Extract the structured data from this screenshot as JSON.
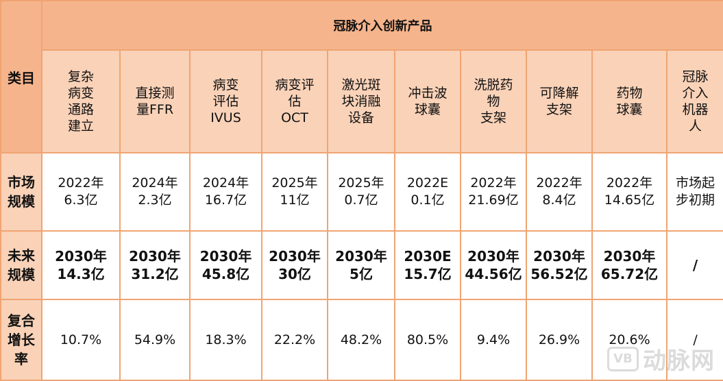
{
  "table": {
    "category_label": "类目",
    "group_title": "冠脉介入创新产品",
    "columns": [
      [
        "复杂",
        "病变",
        "通路",
        "建立"
      ],
      [
        "直接测",
        "量FFR"
      ],
      [
        "病变",
        "评估",
        "IVUS"
      ],
      [
        "病变评",
        "估",
        "OCT"
      ],
      [
        "激光斑",
        "块消融",
        "设备"
      ],
      [
        "冲击波",
        "球囊"
      ],
      [
        "洗脱药",
        "物",
        "支架"
      ],
      [
        "可降解",
        "支架"
      ],
      [
        "药物",
        "球囊"
      ],
      [
        "冠脉",
        "介入",
        "机器",
        "人"
      ]
    ],
    "rows": [
      {
        "label": [
          "市场",
          "规模"
        ],
        "style": "normal",
        "cells": [
          [
            "2022年",
            "6.3亿"
          ],
          [
            "2024年",
            "2.3亿"
          ],
          [
            "2024年",
            "16.7亿"
          ],
          [
            "2025年",
            "11亿"
          ],
          [
            "2025年",
            "0.7亿"
          ],
          [
            "2022E",
            "0.1亿"
          ],
          [
            "2022年",
            "21.69亿"
          ],
          [
            "2022年",
            "8.4亿"
          ],
          [
            "2022年",
            "14.65亿"
          ],
          [
            "市场起",
            "步初期"
          ]
        ]
      },
      {
        "label": [
          "未来",
          "规模"
        ],
        "style": "bold",
        "cells": [
          [
            "2030年",
            "14.3亿"
          ],
          [
            "2030年",
            "31.2亿"
          ],
          [
            "2030年",
            "45.8亿"
          ],
          [
            "2030年",
            "30亿"
          ],
          [
            "2030年",
            "5亿"
          ],
          [
            "2030E",
            "15.7亿"
          ],
          [
            "2030年",
            "44.56亿"
          ],
          [
            "2030年",
            "56.52亿"
          ],
          [
            "2030年",
            "65.72亿"
          ],
          [
            "/"
          ]
        ]
      },
      {
        "label": [
          "复合",
          "增长",
          "率"
        ],
        "style": "rate",
        "cells": [
          [
            "10.7%"
          ],
          [
            "54.9%"
          ],
          [
            "18.3%"
          ],
          [
            "22.2%"
          ],
          [
            "48.2%"
          ],
          [
            "80.5%"
          ],
          [
            "9.4%"
          ],
          [
            "26.9%"
          ],
          [
            "20.6%"
          ],
          [
            "/"
          ]
        ]
      }
    ]
  },
  "watermark": {
    "logo_text": "VB",
    "text": "动脉网"
  },
  "colors": {
    "header": "#f5b48c",
    "subheader": "#f9d2b8",
    "border": "#f0a472"
  }
}
